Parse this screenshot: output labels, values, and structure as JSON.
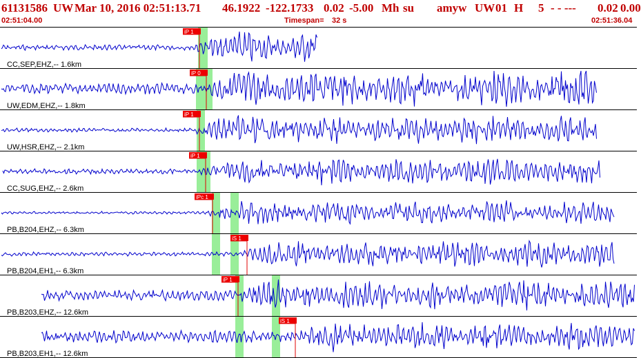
{
  "header": {
    "event_id": "61131586",
    "network": "UW",
    "datetime": "Mar 10, 2016 02:51:13.71",
    "lat": "46.1922",
    "lon": "-122.1733",
    "mag": "0.02",
    "depth": "-5.00",
    "mag_type": "Mh",
    "flag": "su",
    "source": "amyw",
    "auth": "UW",
    "version": "01",
    "etype": "H",
    "count": "5",
    "dashes": "- - ---",
    "rms": "0.02",
    "erh": "0.00"
  },
  "time_bar": {
    "start": "02:51:04.00",
    "timespan_label": "Timespan=",
    "timespan_value": "32 s",
    "end": "02:51:36.04"
  },
  "colors": {
    "header_text": "#c00000",
    "trace": "#0000cc",
    "pick_bg": "#ee0000",
    "pick_window": "#99ee99"
  },
  "channels": [
    {
      "label": "CC,SEP,EHZ,-- 1.6km",
      "picks": [
        {
          "label": "iP 1"
        }
      ]
    },
    {
      "label": "UW,EDM,EHZ,-- 1.8km",
      "picks": [
        {
          "label": "iP 0"
        }
      ]
    },
    {
      "label": "UW,HSR,EHZ,-- 2.1km",
      "picks": [
        {
          "label": "iP 1"
        }
      ]
    },
    {
      "label": "CC,SUG,EHZ,-- 2.6km",
      "picks": [
        {
          "label": "iP 1"
        }
      ]
    },
    {
      "label": "PB,B204,EHZ,-- 6.3km",
      "picks": [
        {
          "label": "iPc 1"
        }
      ]
    },
    {
      "label": "PB,B204,EH1,-- 6.3km",
      "picks": [
        {
          "label": "iS 1"
        }
      ]
    },
    {
      "label": "PB,B203,EHZ,-- 12.6km",
      "picks": [
        {
          "label": "iP 1"
        }
      ]
    },
    {
      "label": "PB,B203,EH1,-- 12.6km",
      "picks": [
        {
          "label": "iS 1"
        }
      ]
    }
  ]
}
